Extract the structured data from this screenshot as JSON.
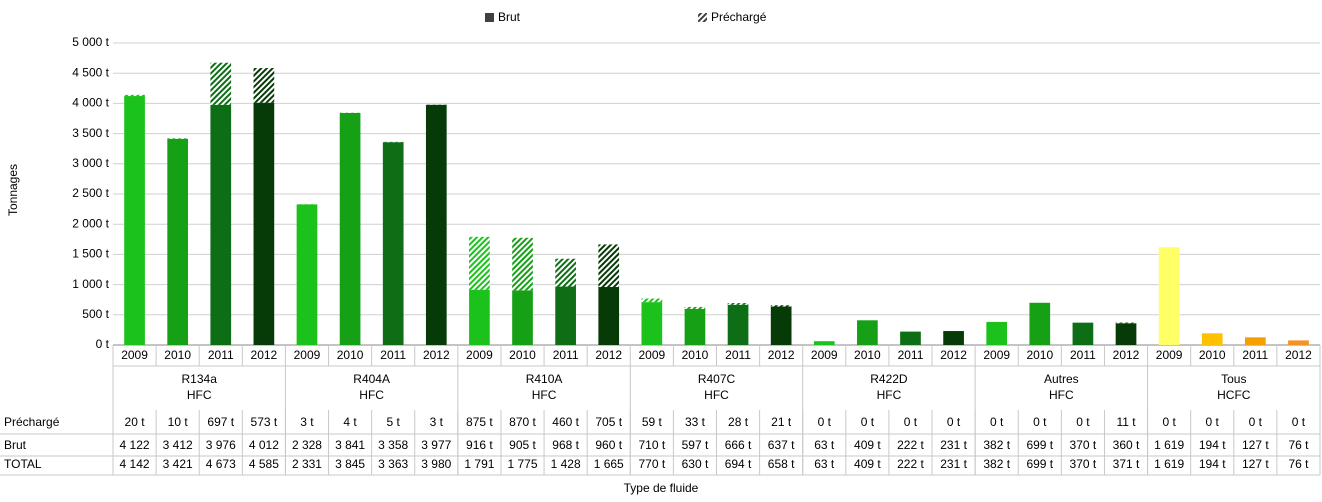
{
  "chart_data": {
    "type": "bar",
    "stacked": true,
    "y_label": "Tonnages",
    "x_label": "Type de fluide",
    "ylim": [
      0,
      5000
    ],
    "yticks": [
      {
        "value": 0,
        "label": "0 t"
      },
      {
        "value": 500,
        "label": "500 t"
      },
      {
        "value": 1000,
        "label": "1 000 t"
      },
      {
        "value": 1500,
        "label": "1 500 t"
      },
      {
        "value": 2000,
        "label": "2 000 t"
      },
      {
        "value": 2500,
        "label": "2 500 t"
      },
      {
        "value": 3000,
        "label": "3 000 t"
      },
      {
        "value": 3500,
        "label": "3 500 t"
      },
      {
        "value": 4000,
        "label": "4 000 t"
      },
      {
        "value": 4500,
        "label": "4 500 t"
      },
      {
        "value": 5000,
        "label": "5 000 t"
      }
    ],
    "grid": true,
    "legend": "top",
    "series": [
      {
        "name": "Brut",
        "color": "#404040"
      },
      {
        "name": "Préchargé",
        "color": "#404040",
        "hatched": true
      }
    ],
    "table_order": [
      1,
      0
    ],
    "total_name": "TOTAL",
    "groups": [
      {
        "name": "R134a",
        "family": "HFC",
        "years": [
          "2009",
          "2010",
          "2011",
          "2012"
        ],
        "colors": [
          "#1cc21c",
          "#16a016",
          "#0d6e16",
          "#063a06"
        ],
        "values": [
          [
            4122,
            3412,
            3976,
            4012
          ],
          [
            20,
            10,
            697,
            573
          ]
        ],
        "value_labels": [
          [
            "4 122",
            "3 412",
            "3 976",
            "4 012"
          ],
          [
            "20 t",
            "10 t",
            "697 t",
            "573 t"
          ]
        ],
        "total": [
          4142,
          3421,
          4673,
          4585
        ],
        "total_labels": [
          "4 142",
          "3 421",
          "4 673",
          "4 585"
        ]
      },
      {
        "name": "R404A",
        "family": "HFC",
        "years": [
          "2009",
          "2010",
          "2011",
          "2012"
        ],
        "colors": [
          "#1cc21c",
          "#16a016",
          "#0d6e16",
          "#063a06"
        ],
        "values": [
          [
            2328,
            3841,
            3358,
            3977
          ],
          [
            3,
            4,
            5,
            3
          ]
        ],
        "value_labels": [
          [
            "2 328",
            "3 841",
            "3 358",
            "3 977"
          ],
          [
            "3 t",
            "4 t",
            "5 t",
            "3 t"
          ]
        ],
        "total": [
          2331,
          3845,
          3363,
          3980
        ],
        "total_labels": [
          "2 331",
          "3 845",
          "3 363",
          "3 980"
        ]
      },
      {
        "name": "R410A",
        "family": "HFC",
        "years": [
          "2009",
          "2010",
          "2011",
          "2012"
        ],
        "colors": [
          "#1cc21c",
          "#16a016",
          "#0d6e16",
          "#063a06"
        ],
        "values": [
          [
            916,
            905,
            968,
            960
          ],
          [
            875,
            870,
            460,
            705
          ]
        ],
        "value_labels": [
          [
            "916 t",
            "905 t",
            "968 t",
            "960 t"
          ],
          [
            "875 t",
            "870 t",
            "460 t",
            "705 t"
          ]
        ],
        "total": [
          1791,
          1775,
          1428,
          1665
        ],
        "total_labels": [
          "1 791",
          "1 775",
          "1 428",
          "1 665"
        ]
      },
      {
        "name": "R407C",
        "family": "HFC",
        "years": [
          "2009",
          "2010",
          "2011",
          "2012"
        ],
        "colors": [
          "#1cc21c",
          "#16a016",
          "#0d6e16",
          "#063a06"
        ],
        "values": [
          [
            710,
            597,
            666,
            637
          ],
          [
            59,
            33,
            28,
            21
          ]
        ],
        "value_labels": [
          [
            "710 t",
            "597 t",
            "666 t",
            "637 t"
          ],
          [
            "59 t",
            "33 t",
            "28 t",
            "21 t"
          ]
        ],
        "total": [
          770,
          630,
          694,
          658
        ],
        "total_labels": [
          "770 t",
          "630 t",
          "694 t",
          "658 t"
        ]
      },
      {
        "name": "R422D",
        "family": "HFC",
        "years": [
          "2009",
          "2010",
          "2011",
          "2012"
        ],
        "colors": [
          "#1cc21c",
          "#16a016",
          "#0d6e16",
          "#063a06"
        ],
        "values": [
          [
            63,
            409,
            222,
            231
          ],
          [
            0,
            0,
            0,
            0
          ]
        ],
        "value_labels": [
          [
            "63 t",
            "409 t",
            "222 t",
            "231 t"
          ],
          [
            "0 t",
            "0 t",
            "0 t",
            "0 t"
          ]
        ],
        "total": [
          63,
          409,
          222,
          231
        ],
        "total_labels": [
          "63 t",
          "409 t",
          "222 t",
          "231 t"
        ]
      },
      {
        "name": "Autres",
        "family": "HFC",
        "years": [
          "2009",
          "2010",
          "2011",
          "2012"
        ],
        "colors": [
          "#1cc21c",
          "#16a016",
          "#0d6e16",
          "#063a06"
        ],
        "values": [
          [
            382,
            699,
            370,
            360
          ],
          [
            0,
            0,
            0,
            11
          ]
        ],
        "value_labels": [
          [
            "382 t",
            "699 t",
            "370 t",
            "360 t"
          ],
          [
            "0 t",
            "0 t",
            "0 t",
            "11 t"
          ]
        ],
        "total": [
          382,
          699,
          370,
          371
        ],
        "total_labels": [
          "382 t",
          "699 t",
          "370 t",
          "371 t"
        ]
      },
      {
        "name": "Tous",
        "family": "HCFC",
        "years": [
          "2009",
          "2010",
          "2011",
          "2012"
        ],
        "colors": [
          "#ffff66",
          "#ffc000",
          "#f5a000",
          "#f59220"
        ],
        "values": [
          [
            1619,
            194,
            127,
            76
          ],
          [
            0,
            0,
            0,
            0
          ]
        ],
        "value_labels": [
          [
            "1 619",
            "194 t",
            "127 t",
            "76 t"
          ],
          [
            "0 t",
            "0 t",
            "0 t",
            "0 t"
          ]
        ],
        "total": [
          1619,
          194,
          127,
          76
        ],
        "total_labels": [
          "1 619",
          "194 t",
          "127 t",
          "76 t"
        ]
      }
    ]
  }
}
